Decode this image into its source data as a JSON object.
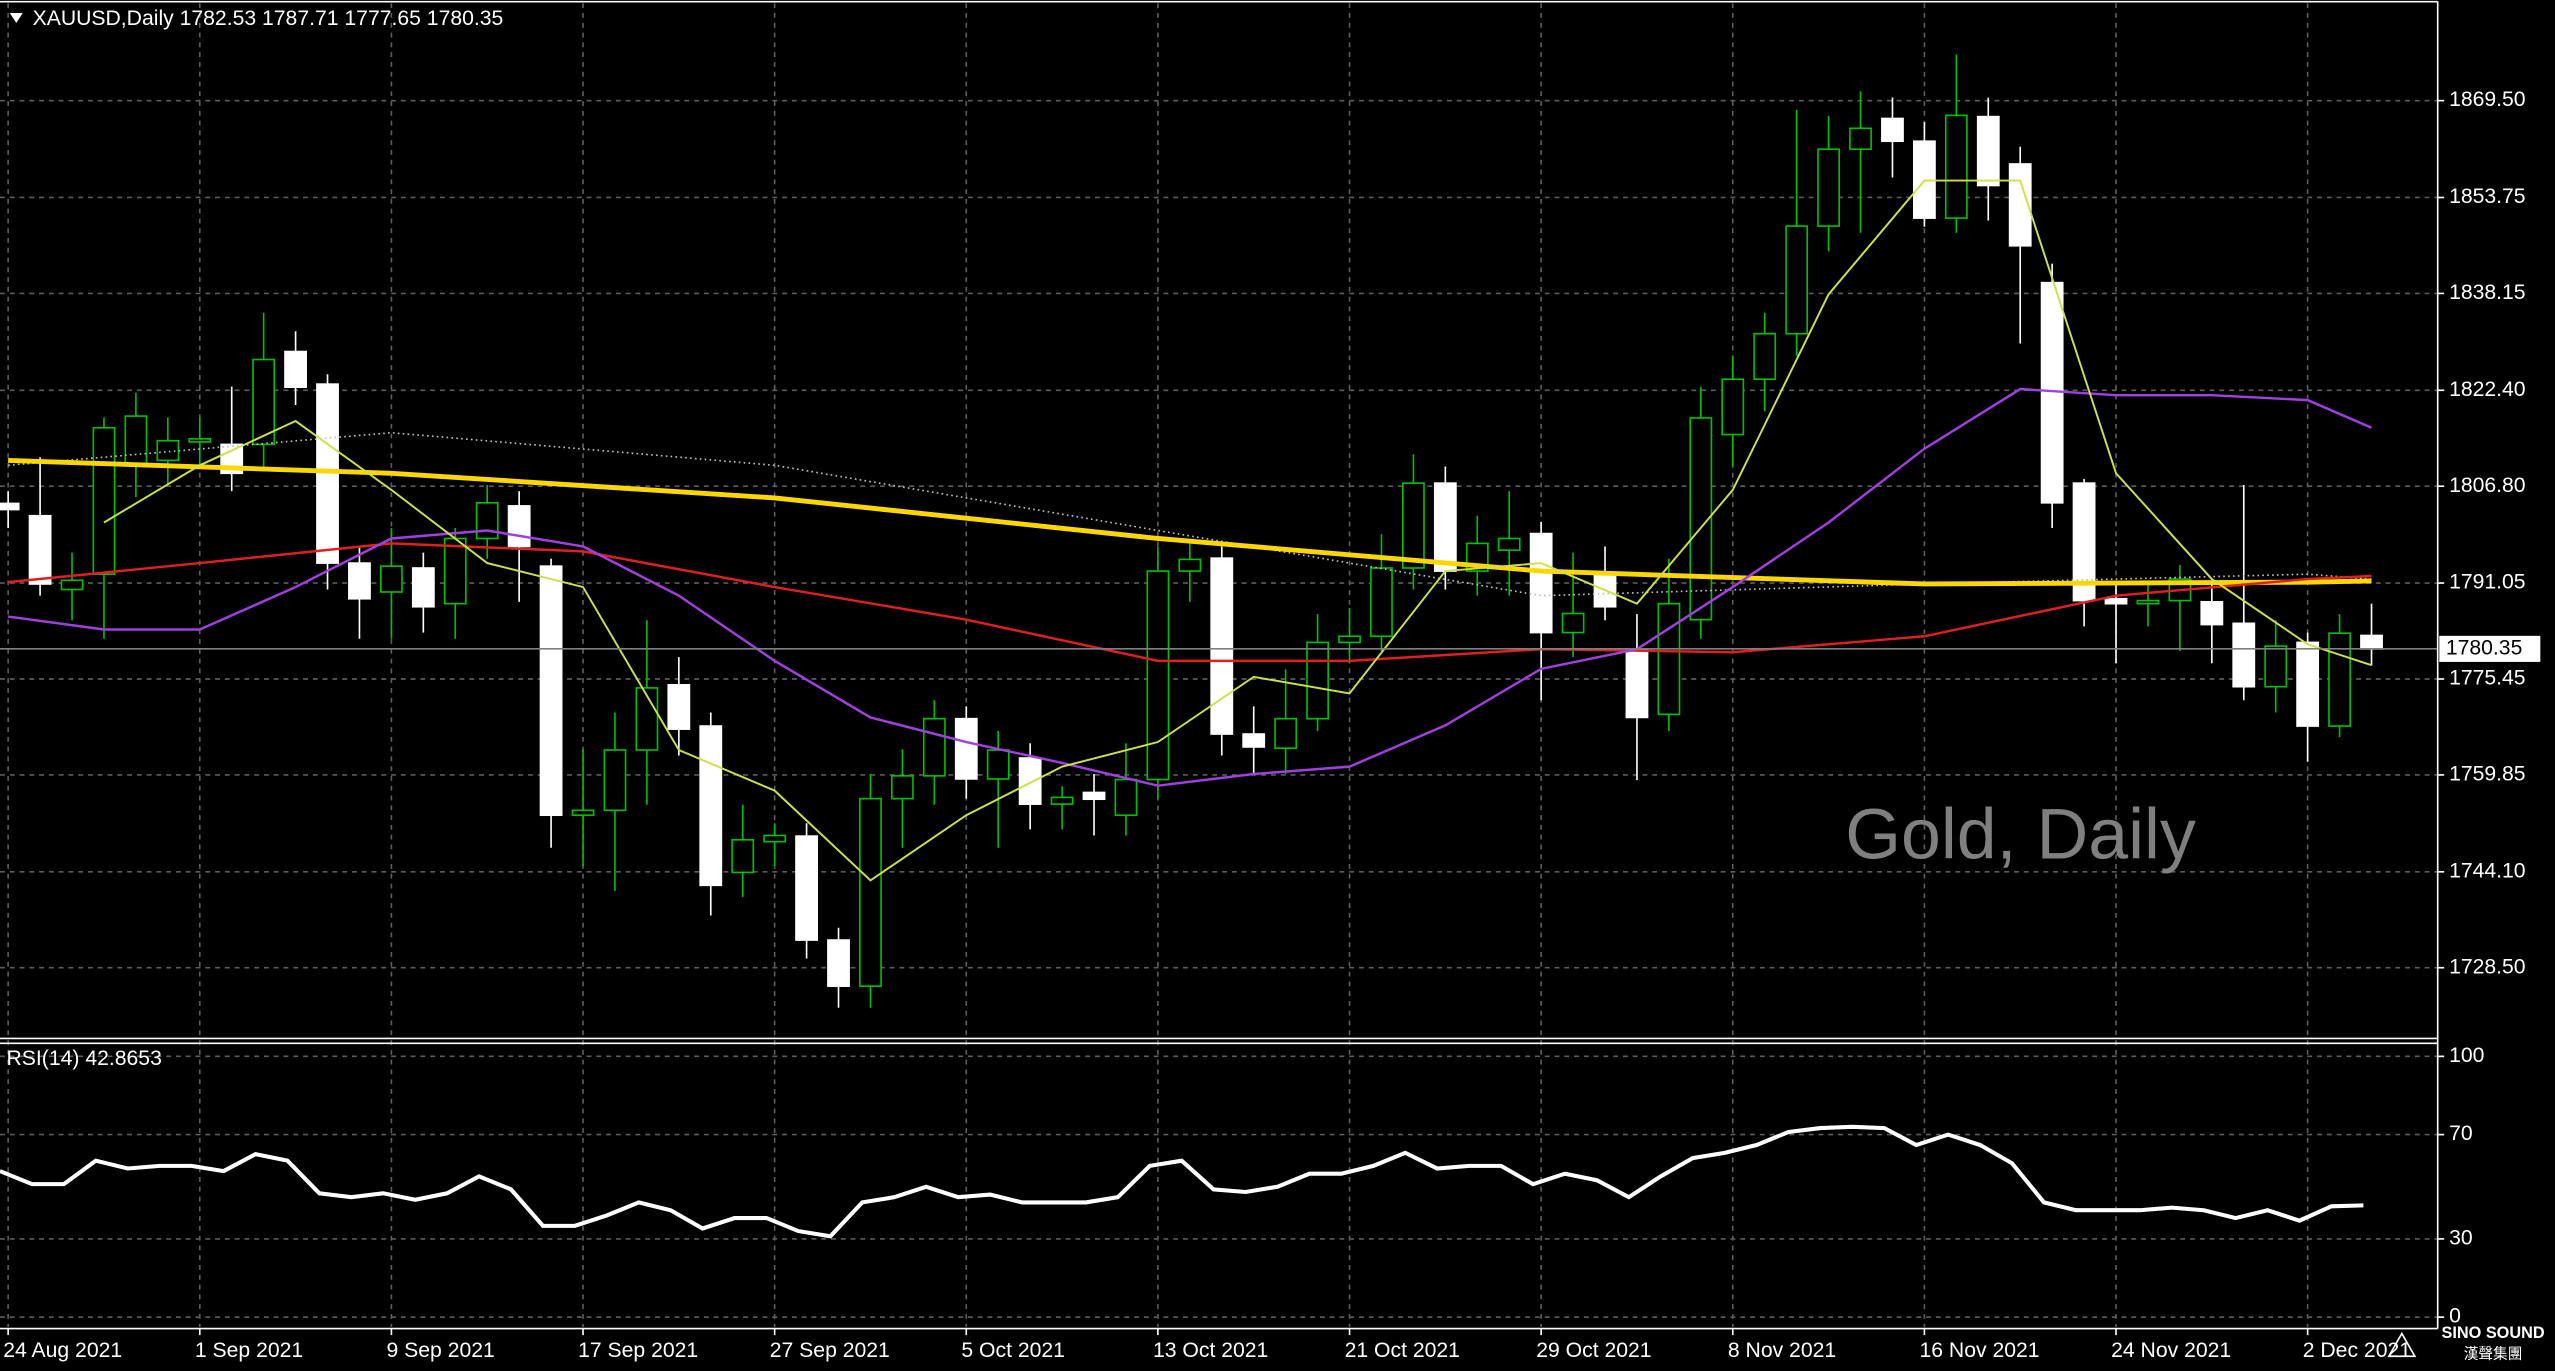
{
  "chart_data": [
    {
      "type": "candlestick",
      "title": "XAUUSD,Daily  1782.53 1787.71 1777.65 1780.35",
      "annotation": "Gold, Daily",
      "up_color": "#00c000",
      "down_color": "#ffffff",
      "grid": true,
      "ylim": [
        1717.0,
        1885.6
      ],
      "yticks": [
        {
          "value": 1869.5,
          "label": "1869.50"
        },
        1853.75,
        1838.15,
        {
          "value": 1822.4,
          "label": "1822.40"
        },
        {
          "value": 1806.8,
          "label": "1806.80"
        },
        1791.05,
        1775.45,
        1759.85,
        {
          "value": 1744.1,
          "label": "1744.10"
        },
        {
          "value": 1728.5,
          "label": "1728.50"
        }
      ],
      "last_price": 1780.35,
      "open": [
        1804,
        1802,
        1790,
        1792.5,
        1810.2,
        1811,
        1814,
        1813.6,
        1813.6,
        1828.7,
        1823.4,
        1794.3,
        1789.6,
        1793.5,
        1787.7,
        1798.3,
        1803.6,
        1793.8,
        1753.3,
        1754.1,
        1763.9,
        1774.5,
        1767.8,
        1744,
        1749,
        1749.9,
        1733,
        1725.5,
        1756,
        1759.7,
        1769,
        1759.2,
        1762.6,
        1755.1,
        1757,
        1753.3,
        1759.1,
        1793,
        1795.1,
        1766.5,
        1764.2,
        1769,
        1781.4,
        1782.4,
        1793.5,
        1807.3,
        1793,
        1796.4,
        1799.1,
        1783,
        1792.5,
        1780.3,
        1769.7,
        1785.1,
        1815.2,
        1824.2,
        1831.6,
        1849.1,
        1861.6,
        1866.6,
        1862.9,
        1850.4,
        1866.9,
        1859.2,
        1839.9,
        1807.3,
        1788.5,
        1787.7,
        1788.2,
        1788,
        1784.5,
        1774.2,
        1781.4,
        1767.8,
        1782.53
      ],
      "high": [
        1806,
        1811.5,
        1796,
        1818,
        1822,
        1818,
        1818,
        1823,
        1835,
        1832,
        1825,
        1797,
        1800,
        1796,
        1800,
        1807,
        1806,
        1795,
        1764,
        1770,
        1785,
        1779,
        1770,
        1755,
        1752,
        1752,
        1735,
        1760,
        1764,
        1772,
        1771,
        1767,
        1765,
        1758,
        1760,
        1765,
        1797,
        1798,
        1797,
        1771,
        1777,
        1786,
        1787,
        1799,
        1812,
        1810,
        1802,
        1806,
        1801,
        1796,
        1797,
        1786,
        1795,
        1823,
        1828,
        1835,
        1868,
        1867,
        1871,
        1870,
        1866,
        1877,
        1870,
        1862,
        1843,
        1808,
        1791,
        1791,
        1794,
        1791,
        1807,
        1785,
        1783,
        1786,
        1787.71
      ],
      "low": [
        1800,
        1789,
        1785,
        1782,
        1805,
        1807,
        1810,
        1806,
        1810,
        1820,
        1790,
        1782,
        1782,
        1783,
        1782,
        1795,
        1788,
        1748,
        1745,
        1741,
        1755,
        1763,
        1737,
        1740,
        1745,
        1730,
        1722,
        1722,
        1748,
        1755,
        1756,
        1748,
        1751,
        1751,
        1750,
        1750,
        1756,
        1788,
        1763,
        1760,
        1760,
        1767,
        1778,
        1780,
        1790,
        1790,
        1789,
        1789,
        1772,
        1779,
        1785,
        1759,
        1767,
        1782,
        1810,
        1819,
        1828,
        1845,
        1848,
        1857,
        1849,
        1848,
        1850,
        1830,
        1800,
        1784,
        1778,
        1784,
        1780,
        1778,
        1772,
        1770,
        1762,
        1766,
        1777.65
      ],
      "close": [
        1803,
        1790.9,
        1791.5,
        1816.3,
        1818.2,
        1814.2,
        1814.5,
        1808.9,
        1827.4,
        1822.9,
        1794.3,
        1788.5,
        1793.8,
        1787.2,
        1798.3,
        1804.1,
        1797,
        1753.3,
        1754.1,
        1763.9,
        1774,
        1767.3,
        1741.9,
        1749.3,
        1750,
        1733,
        1725.5,
        1756,
        1759.7,
        1769,
        1759.2,
        1763.9,
        1755.1,
        1756.2,
        1755.9,
        1759.1,
        1793,
        1794.9,
        1766.5,
        1764.4,
        1769,
        1781.4,
        1782.4,
        1793.5,
        1807.3,
        1793,
        1797.5,
        1798.3,
        1783,
        1786.1,
        1787.2,
        1769.2,
        1787.7,
        1817.9,
        1824.2,
        1831.6,
        1849.1,
        1861.6,
        1865,
        1862.9,
        1850.4,
        1867.1,
        1855.7,
        1845.9,
        1804.1,
        1788.2,
        1787.7,
        1788.2,
        1791.7,
        1784.3,
        1774.2,
        1780.8,
        1767.8,
        1782.9,
        1780.35
      ],
      "series": [
        {
          "color": "#c0c0c0",
          "width": 1,
          "dash": "dotted",
          "x": [
            0,
            12,
            24,
            36,
            48,
            60,
            72,
            74
          ],
          "values": [
            1810.2,
            1815.5,
            1810.2,
            1799.6,
            1789,
            1790.9,
            1792.5,
            1791.7
          ]
        },
        {
          "color": "#ffd700",
          "width": 3,
          "x": [
            0,
            12,
            24,
            36,
            48,
            60,
            72,
            74
          ],
          "values": [
            1811,
            1808.9,
            1804.9,
            1798.3,
            1793,
            1790.9,
            1791.2,
            1791.4
          ]
        },
        {
          "color": "#e02020",
          "width": 1.5,
          "x": [
            0,
            6,
            12,
            18,
            24,
            30,
            36,
            42,
            48,
            54,
            60,
            66,
            72,
            74
          ],
          "values": [
            1791.2,
            1794.3,
            1797.5,
            1796.2,
            1790.4,
            1785.1,
            1778.4,
            1778.4,
            1780.3,
            1779.8,
            1782.4,
            1789,
            1791.7,
            1792.2
          ]
        },
        {
          "color": "#a040e0",
          "width": 1.5,
          "x": [
            0,
            3,
            6,
            9,
            12,
            15,
            18,
            21,
            24,
            27,
            30,
            33,
            36,
            39,
            42,
            45,
            48,
            51,
            54,
            57,
            60,
            63,
            66,
            69,
            72,
            74
          ],
          "values": [
            1785.6,
            1783.5,
            1783.5,
            1790.4,
            1798.3,
            1799.6,
            1797,
            1789,
            1778.4,
            1769.2,
            1765.2,
            1761.8,
            1758.1,
            1760,
            1761.2,
            1767.9,
            1777.1,
            1780.3,
            1790.4,
            1800.9,
            1812.9,
            1822.6,
            1821.6,
            1821.6,
            1820.8,
            1816.3
          ]
        },
        {
          "color": "#cde04a",
          "width": 1.2,
          "x": [
            3,
            6,
            9,
            12,
            15,
            18,
            21,
            24,
            27,
            30,
            33,
            36,
            39,
            42,
            45,
            48,
            51,
            54,
            57,
            60,
            63,
            66,
            69,
            72,
            74
          ],
          "values": [
            1800.9,
            1810.2,
            1817.4,
            1806.2,
            1794.3,
            1790.4,
            1763.9,
            1757.3,
            1742.7,
            1753.3,
            1761.2,
            1765.2,
            1775.8,
            1773.1,
            1793,
            1794.3,
            1787.7,
            1806.2,
            1838,
            1856.5,
            1856.5,
            1808.9,
            1791.7,
            1781.1,
            1777.7
          ]
        }
      ]
    },
    {
      "type": "line",
      "title": "RSI(14) 42.8653",
      "color": "#ffffff",
      "grid": true,
      "ylim": [
        -4.4,
        105
      ],
      "yticks": [
        100,
        70,
        30,
        0
      ],
      "categories": [
        "24 Aug 2021",
        null,
        null,
        null,
        null,
        null,
        "1 Sep 2021",
        null,
        null,
        null,
        null,
        null,
        "9 Sep 2021",
        null,
        null,
        null,
        null,
        null,
        "17 Sep 2021",
        null,
        null,
        null,
        null,
        null,
        "27 Sep 2021",
        null,
        null,
        null,
        null,
        null,
        "5 Oct 2021",
        null,
        null,
        null,
        null,
        null,
        "13 Oct 2021",
        null,
        null,
        null,
        null,
        null,
        "21 Oct 2021",
        null,
        null,
        null,
        null,
        null,
        "29 Oct 2021",
        null,
        null,
        null,
        null,
        null,
        "8 Nov 2021",
        null,
        null,
        null,
        null,
        null,
        "16 Nov 2021",
        null,
        null,
        null,
        null,
        null,
        "24 Nov 2021",
        null,
        null,
        null,
        null,
        null,
        "2 Dec 2021",
        null,
        null
      ],
      "values": [
        56,
        51,
        51,
        60,
        57,
        58,
        58,
        56,
        62.5,
        60,
        47.5,
        46,
        47.5,
        45,
        47.5,
        54,
        49,
        35,
        35,
        39,
        44,
        41,
        34,
        38,
        38,
        33,
        31,
        44,
        46,
        50,
        46,
        47,
        44,
        44,
        44,
        46,
        58,
        60,
        49,
        48,
        50,
        55,
        55,
        58,
        63,
        57,
        58,
        58,
        51,
        55,
        52.5,
        46,
        54,
        61,
        63,
        66,
        71,
        72.5,
        73,
        72.5,
        66,
        70,
        66,
        59,
        44,
        41,
        41,
        41,
        42,
        41,
        38,
        41,
        37,
        42.5,
        42.8653
      ]
    }
  ],
  "logo": {
    "text": "SINO SOUND",
    "subtext": "漢聲集團"
  }
}
